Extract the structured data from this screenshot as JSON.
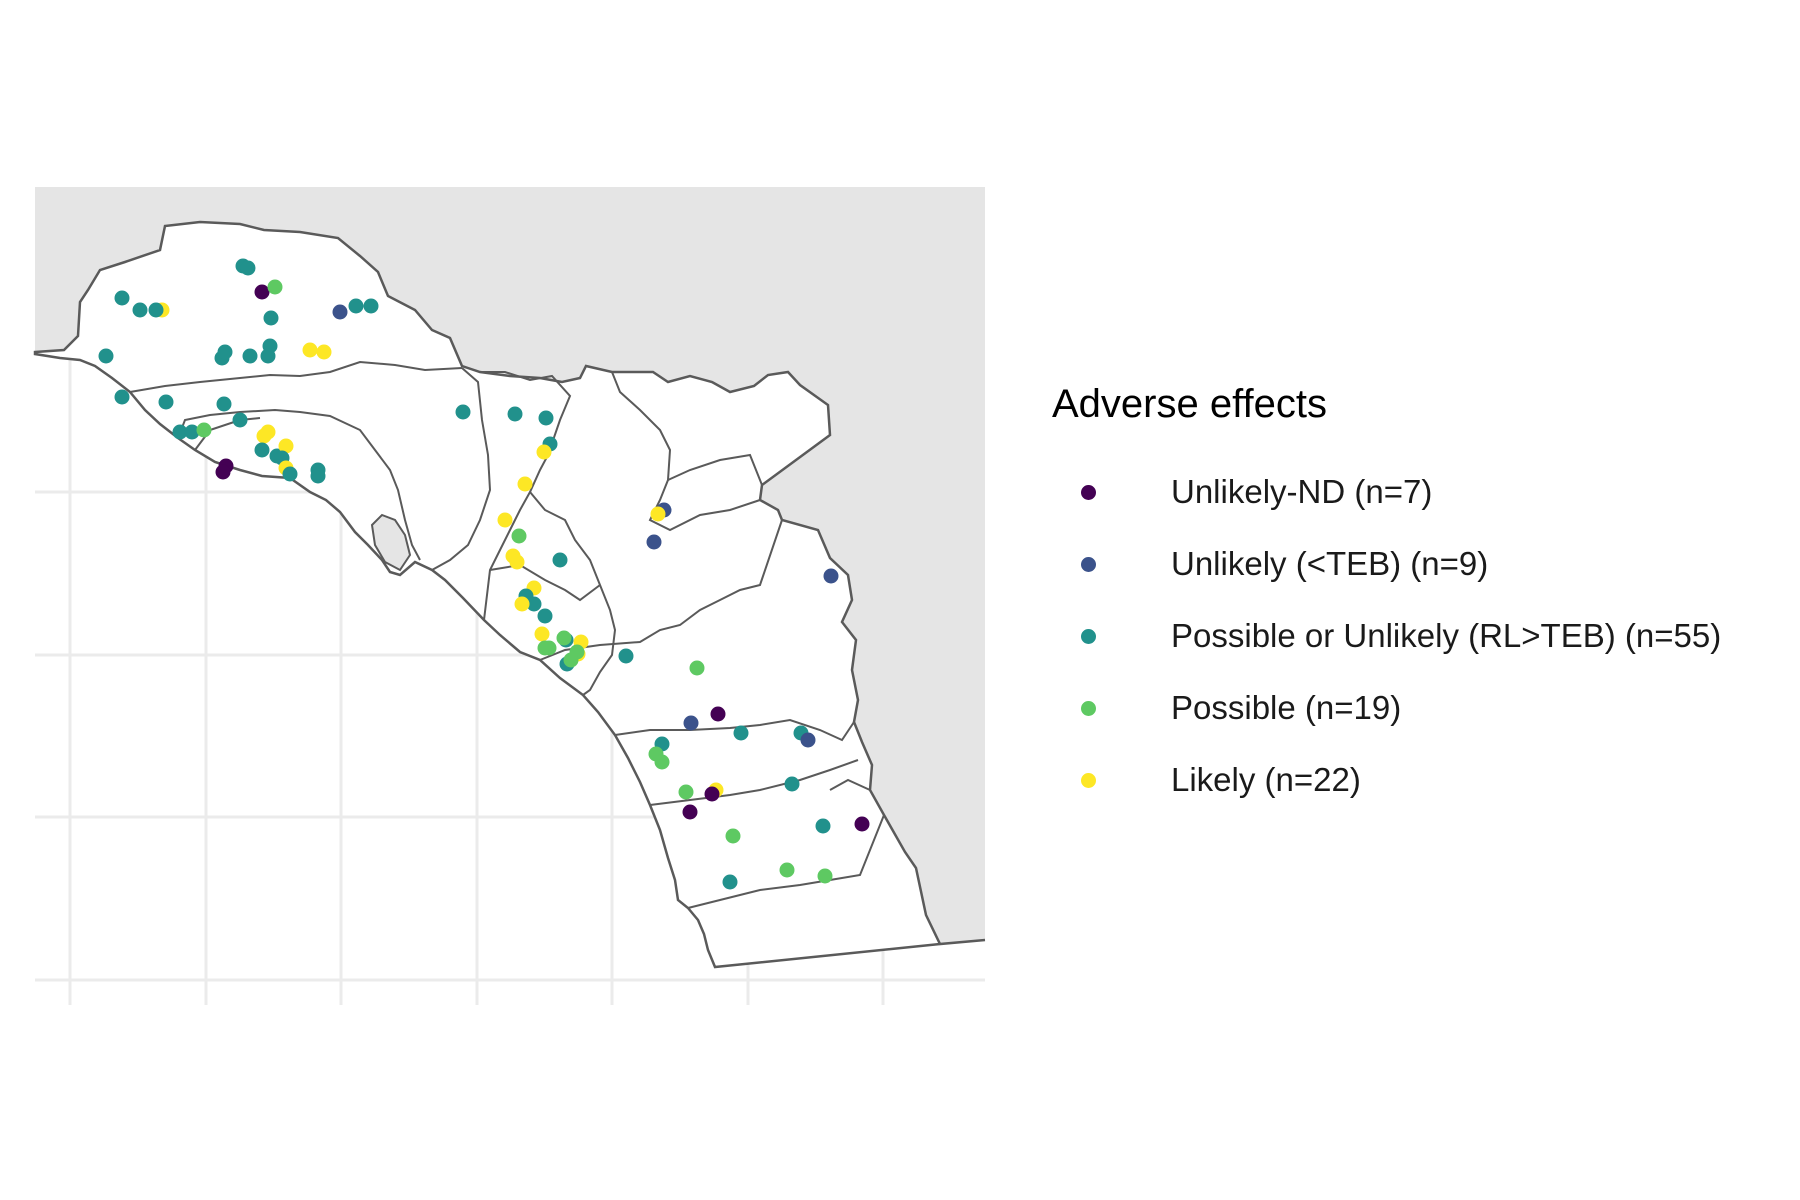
{
  "legend": {
    "title": "Adverse effects",
    "items": [
      {
        "label": "Unlikely-ND (n=7)",
        "color": "#440154"
      },
      {
        "label": "Unlikely (<TEB) (n=9)",
        "color": "#3b528b"
      },
      {
        "label": "Possible or Unlikely (RL>TEB) (n=55)",
        "color": "#21918c"
      },
      {
        "label": "Possible (n=19)",
        "color": "#5ec962"
      },
      {
        "label": "Likely (n=22)",
        "color": "#fde725"
      }
    ]
  },
  "colors": {
    "ocean": "#e5e5e5",
    "land": "#ffffff",
    "border": "#5a5a5a",
    "grid": "#ebebeb"
  }
}
